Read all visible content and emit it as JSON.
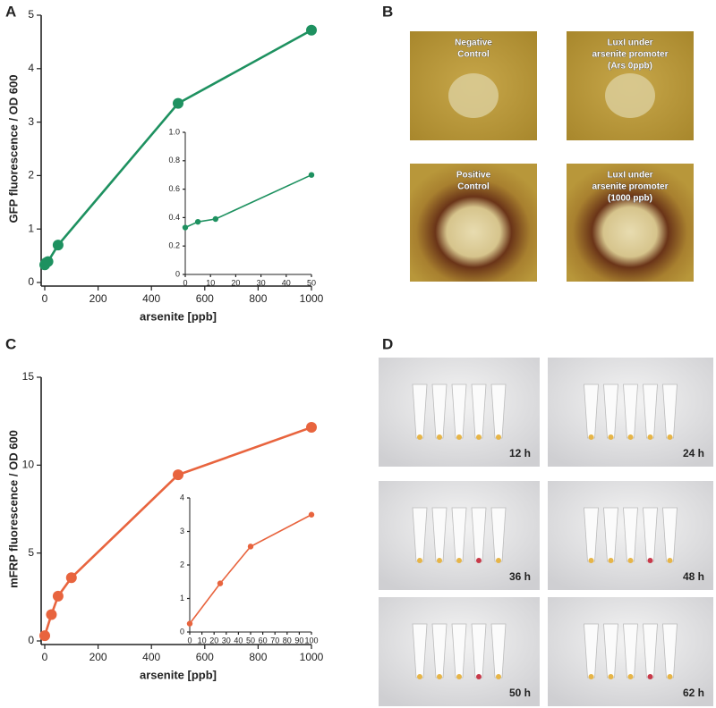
{
  "panel_labels": [
    "A",
    "B",
    "C",
    "D"
  ],
  "chart_data": [
    {
      "type": "line",
      "x_label": "arsenite [ppb]",
      "y_label": "GFP fluorescence / OD 600",
      "color": "#1e9160",
      "x": [
        0,
        5,
        12,
        50,
        500,
        1000
      ],
      "values": [
        0.33,
        0.37,
        0.39,
        0.7,
        3.35,
        4.72
      ],
      "xlim": [
        0,
        1000
      ],
      "xticks": [
        0,
        200,
        400,
        600,
        800,
        1000
      ],
      "ylim": [
        0,
        5
      ],
      "yticks": [
        0,
        1,
        2,
        3,
        4,
        5
      ]
    },
    {
      "type": "line",
      "color": "#1e9160",
      "x": [
        0,
        5,
        12,
        50
      ],
      "values": [
        0.33,
        0.37,
        0.39,
        0.7
      ],
      "xlim": [
        0,
        50
      ],
      "xticks": [
        0,
        10,
        20,
        30,
        40,
        50
      ],
      "ylim": [
        0,
        1
      ],
      "yticks": [
        0,
        0.2,
        0.4,
        0.6,
        0.8,
        {
          "value": 1,
          "label": "1.0"
        }
      ]
    },
    {
      "type": "line",
      "x_label": "arsenite [ppb]",
      "y_label": "mFRP fluorescence / OD 600",
      "color": "#e8643e",
      "x": [
        0,
        25,
        50,
        100,
        500,
        1000
      ],
      "values": [
        0.3,
        1.5,
        2.55,
        3.6,
        9.45,
        12.15
      ],
      "xlim": [
        0,
        1000
      ],
      "xticks": [
        0,
        200,
        400,
        600,
        800,
        1000
      ],
      "ylim": [
        0,
        15
      ],
      "yticks": [
        0,
        5,
        10,
        15
      ]
    },
    {
      "type": "line",
      "color": "#e8643e",
      "x": [
        0,
        25,
        50,
        100
      ],
      "values": [
        0.25,
        1.45,
        2.55,
        3.5
      ],
      "xlim": [
        0,
        100
      ],
      "xticks": [
        0,
        10,
        20,
        30,
        40,
        50,
        60,
        70,
        80,
        90,
        100
      ],
      "ylim": [
        0,
        4
      ],
      "yticks": [
        0,
        1,
        2,
        3,
        4
      ]
    }
  ],
  "plates": [
    [
      "Negative",
      "Control"
    ],
    [
      "LuxI under",
      "arsenite promoter",
      "(Ars 0ppb)"
    ],
    [
      "Positive",
      "Control"
    ],
    [
      "LuxI under",
      "arsenite promoter",
      "(1000 ppb)"
    ]
  ],
  "tubes": [
    "12 h",
    "24 h",
    "36 h",
    "48 h",
    "50 h",
    "62 h"
  ]
}
